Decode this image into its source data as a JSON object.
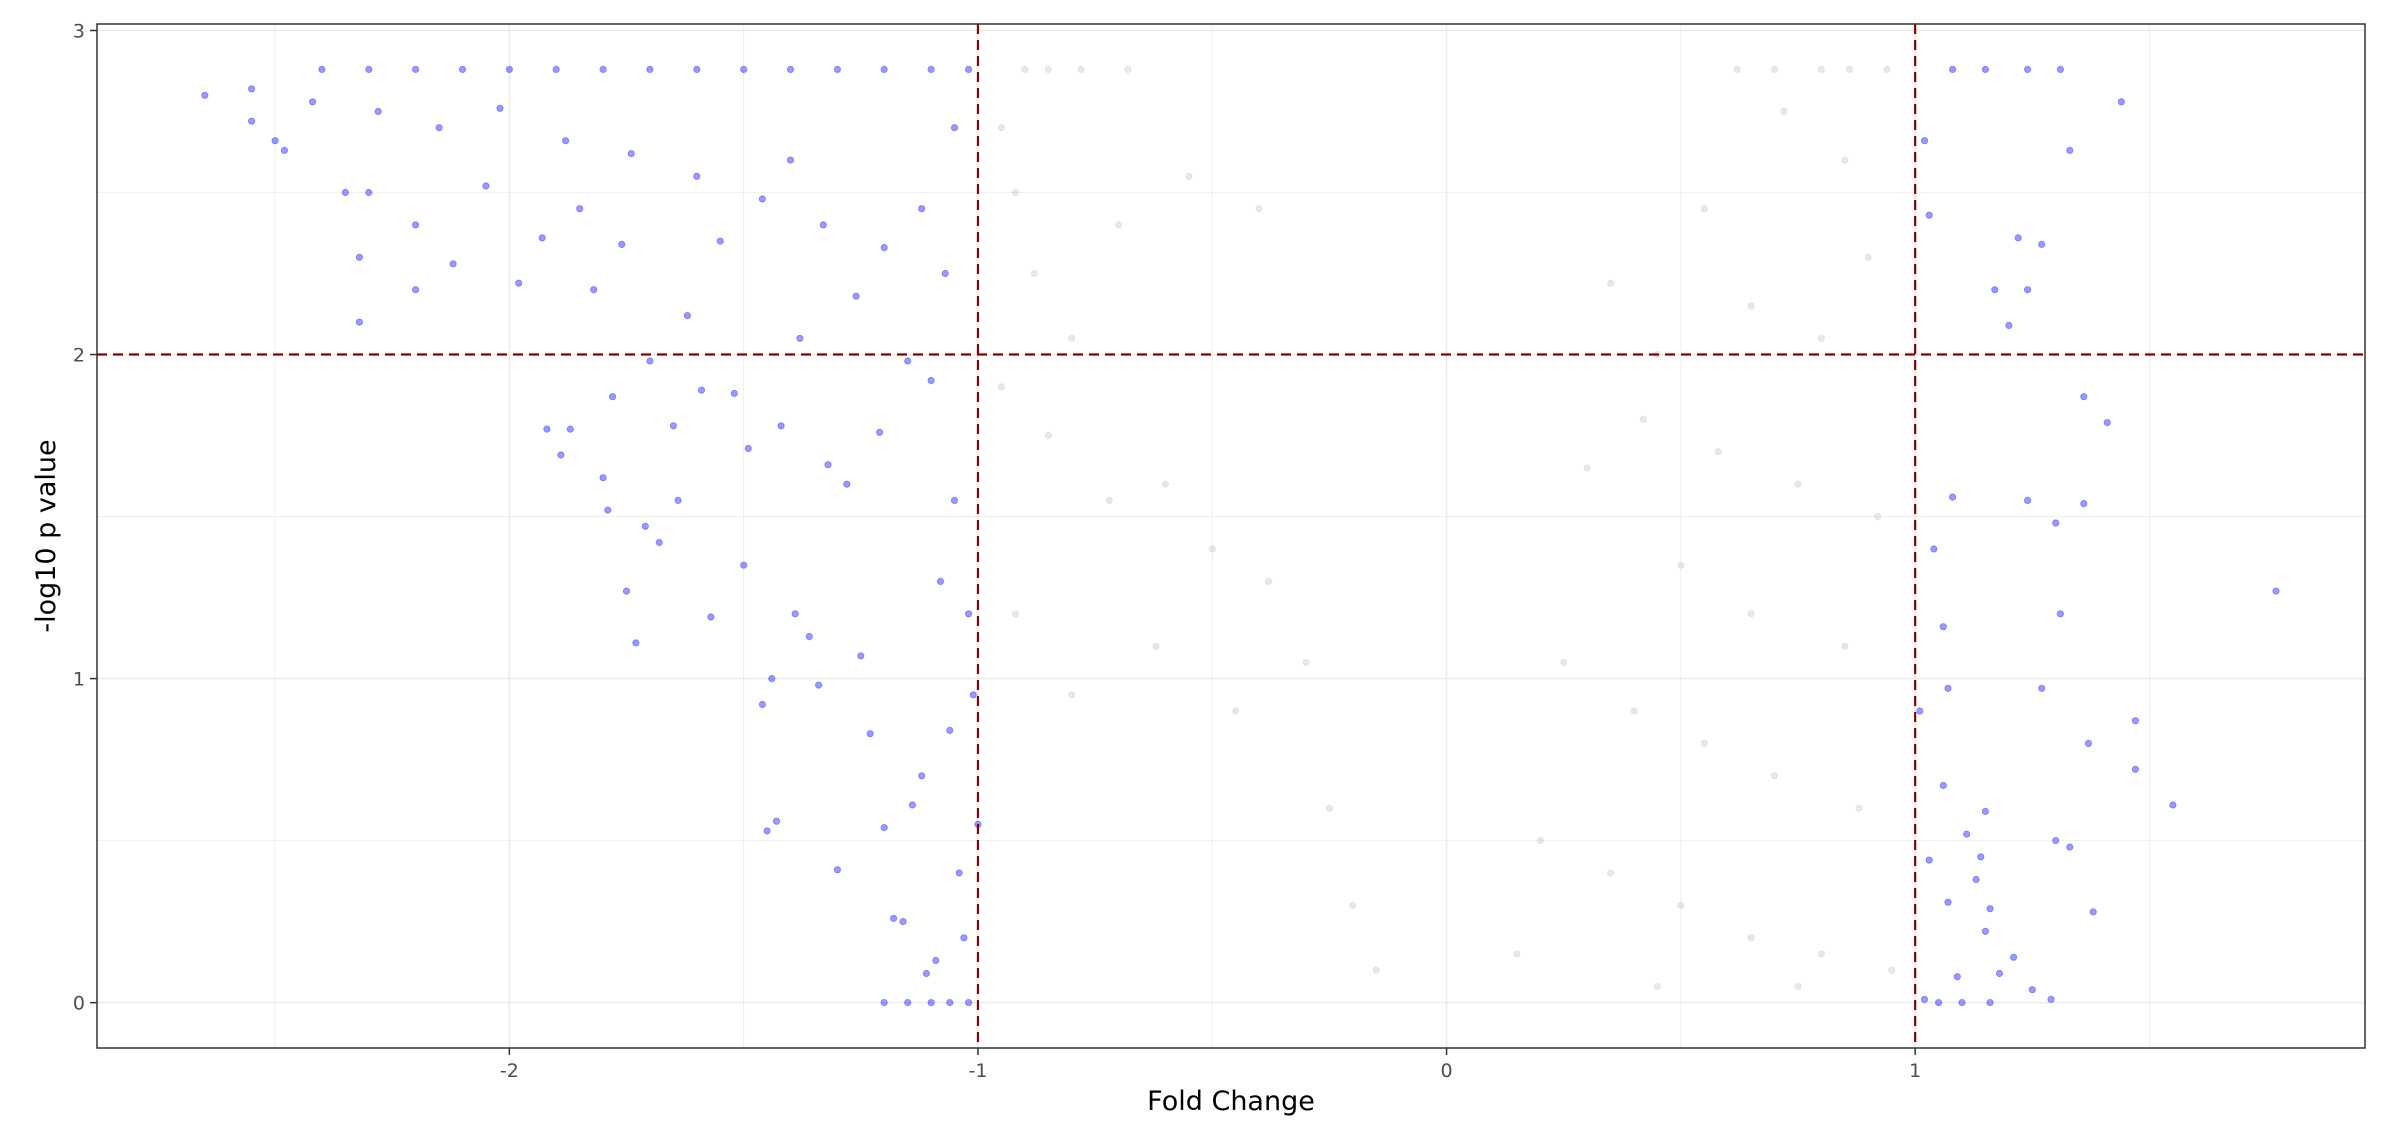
{
  "chart_data": {
    "type": "scatter",
    "title": "",
    "xlabel": "Fold Change",
    "ylabel": "-log10 p value",
    "xlim": [
      -2.88,
      1.96
    ],
    "ylim": [
      -0.14,
      3.02
    ],
    "x_ticks": [
      -2,
      -1,
      0,
      1
    ],
    "y_ticks": [
      0,
      1,
      2,
      3
    ],
    "x_tick_labels": [
      "-2",
      "-1",
      "0",
      "1"
    ],
    "y_tick_labels": [
      "0",
      "1",
      "2",
      "3"
    ],
    "grid": true,
    "legend": "none",
    "thresholds": {
      "fold_change": [
        -1,
        1
      ],
      "neg_log10_p": 2
    },
    "colors": {
      "significant": "#0000ff",
      "not_significant": "#bebebe",
      "threshold_line": "#8b0000",
      "grid": "#ebebeb",
      "panel_border": "#333333"
    },
    "series": [
      {
        "values": [
          [
            -2.65,
            2.8
          ],
          [
            -2.55,
            2.72
          ],
          [
            -2.5,
            2.66
          ],
          [
            -2.48,
            2.63
          ],
          [
            -2.35,
            2.5
          ],
          [
            -2.32,
            2.3
          ],
          [
            -2.32,
            2.1
          ],
          [
            -2.3,
            2.5
          ],
          [
            -2.2,
            2.4
          ],
          [
            -2.2,
            2.2
          ],
          [
            -2.12,
            2.28
          ],
          [
            -2.05,
            2.52
          ],
          [
            -1.98,
            2.22
          ],
          [
            -1.93,
            2.36
          ],
          [
            -1.92,
            1.77
          ],
          [
            -1.89,
            1.69
          ],
          [
            -1.87,
            1.77
          ],
          [
            -1.82,
            2.2
          ],
          [
            -1.8,
            1.62
          ],
          [
            -1.79,
            1.52
          ],
          [
            -1.78,
            1.87
          ],
          [
            -1.76,
            2.34
          ],
          [
            -1.75,
            1.27
          ],
          [
            -1.73,
            1.11
          ],
          [
            -1.71,
            1.47
          ],
          [
            -1.7,
            1.98
          ],
          [
            -1.68,
            1.42
          ],
          [
            -1.65,
            1.78
          ],
          [
            -1.64,
            1.55
          ],
          [
            -1.59,
            1.89
          ],
          [
            -1.57,
            1.19
          ],
          [
            -1.52,
            1.88
          ],
          [
            -1.5,
            1.35
          ],
          [
            -1.49,
            1.71
          ],
          [
            -1.46,
            0.92
          ],
          [
            -1.45,
            0.53
          ],
          [
            -1.44,
            1.0
          ],
          [
            -1.43,
            0.56
          ],
          [
            -1.42,
            1.78
          ],
          [
            -1.39,
            1.2
          ],
          [
            -1.36,
            1.13
          ],
          [
            -1.34,
            0.98
          ],
          [
            -1.32,
            1.66
          ],
          [
            -1.3,
            0.41
          ],
          [
            -1.28,
            1.6
          ],
          [
            -1.25,
            1.07
          ],
          [
            -1.23,
            0.83
          ],
          [
            -1.21,
            1.76
          ],
          [
            -1.2,
            0.54
          ],
          [
            -1.18,
            0.26
          ],
          [
            -1.16,
            0.25
          ],
          [
            -1.14,
            0.61
          ],
          [
            -1.12,
            0.7
          ],
          [
            -1.11,
            0.09
          ],
          [
            -1.1,
            1.92
          ],
          [
            -1.09,
            0.13
          ],
          [
            -1.08,
            1.3
          ],
          [
            -1.06,
            0.84
          ],
          [
            -1.05,
            1.55
          ],
          [
            -1.04,
            0.4
          ],
          [
            -1.03,
            0.2
          ],
          [
            -1.02,
            1.2
          ],
          [
            -1.01,
            0.95
          ],
          [
            -1.0,
            0.55
          ],
          [
            -2.55,
            2.82
          ],
          [
            -2.42,
            2.78
          ],
          [
            -2.28,
            2.75
          ],
          [
            -2.15,
            2.7
          ],
          [
            -2.02,
            2.76
          ],
          [
            -1.88,
            2.66
          ],
          [
            -1.74,
            2.62
          ],
          [
            -1.6,
            2.55
          ],
          [
            -1.46,
            2.48
          ],
          [
            -1.33,
            2.4
          ],
          [
            -1.2,
            2.33
          ],
          [
            -1.07,
            2.25
          ],
          [
            -1.62,
            2.12
          ],
          [
            -1.38,
            2.05
          ],
          [
            -1.15,
            1.98
          ],
          [
            -1.55,
            2.35
          ],
          [
            -1.26,
            2.18
          ],
          [
            -1.12,
            2.45
          ],
          [
            -1.85,
            2.45
          ],
          [
            -1.4,
            2.6
          ],
          [
            -1.05,
            2.7
          ],
          [
            -2.4,
            2.88
          ],
          [
            -2.3,
            2.88
          ],
          [
            -2.2,
            2.88
          ],
          [
            -2.1,
            2.88
          ],
          [
            -2.0,
            2.88
          ],
          [
            -1.9,
            2.88
          ],
          [
            -1.8,
            2.88
          ],
          [
            -1.7,
            2.88
          ],
          [
            -1.6,
            2.88
          ],
          [
            -1.5,
            2.88
          ],
          [
            -1.4,
            2.88
          ],
          [
            -1.3,
            2.88
          ],
          [
            -1.2,
            2.88
          ],
          [
            -1.1,
            2.88
          ],
          [
            -1.02,
            2.88
          ],
          [
            -1.2,
            0.0
          ],
          [
            -1.15,
            0.0
          ],
          [
            -1.1,
            0.0
          ],
          [
            -1.06,
            0.0
          ],
          [
            -1.02,
            0.0
          ],
          [
            1.08,
            2.88
          ],
          [
            1.15,
            2.88
          ],
          [
            1.24,
            2.88
          ],
          [
            1.31,
            2.88
          ],
          [
            1.44,
            2.78
          ],
          [
            1.33,
            2.63
          ],
          [
            1.22,
            2.36
          ],
          [
            1.17,
            2.2
          ],
          [
            1.27,
            2.34
          ],
          [
            1.2,
            2.09
          ],
          [
            1.24,
            2.2
          ],
          [
            1.36,
            1.87
          ],
          [
            1.41,
            1.79
          ],
          [
            1.36,
            1.54
          ],
          [
            1.24,
            1.55
          ],
          [
            1.3,
            1.48
          ],
          [
            1.77,
            1.27
          ],
          [
            1.31,
            1.2
          ],
          [
            1.08,
            1.56
          ],
          [
            1.04,
            1.4
          ],
          [
            1.06,
            1.16
          ],
          [
            1.07,
            0.97
          ],
          [
            1.27,
            0.97
          ],
          [
            1.37,
            0.8
          ],
          [
            1.47,
            0.87
          ],
          [
            1.47,
            0.72
          ],
          [
            1.55,
            0.61
          ],
          [
            1.06,
            0.67
          ],
          [
            1.15,
            0.59
          ],
          [
            1.3,
            0.5
          ],
          [
            1.33,
            0.48
          ],
          [
            1.11,
            0.52
          ],
          [
            1.14,
            0.45
          ],
          [
            1.03,
            0.44
          ],
          [
            1.38,
            0.28
          ],
          [
            1.13,
            0.38
          ],
          [
            1.07,
            0.31
          ],
          [
            1.16,
            0.29
          ],
          [
            1.15,
            0.22
          ],
          [
            1.09,
            0.08
          ],
          [
            1.21,
            0.14
          ],
          [
            1.18,
            0.09
          ],
          [
            1.25,
            0.04
          ],
          [
            1.29,
            0.01
          ],
          [
            1.02,
            2.66
          ],
          [
            1.03,
            2.43
          ],
          [
            1.01,
            0.9
          ],
          [
            1.02,
            0.01
          ],
          [
            1.05,
            0.0
          ],
          [
            1.1,
            0.0
          ],
          [
            1.16,
            0.0
          ]
        ]
      },
      {
        "values": [
          [
            -0.9,
            2.88
          ],
          [
            -0.85,
            2.88
          ],
          [
            -0.78,
            2.88
          ],
          [
            -0.68,
            2.88
          ],
          [
            -0.95,
            2.7
          ],
          [
            -0.92,
            2.5
          ],
          [
            -0.88,
            2.25
          ],
          [
            -0.8,
            2.05
          ],
          [
            -0.7,
            2.4
          ],
          [
            -0.55,
            2.55
          ],
          [
            -0.4,
            2.45
          ],
          [
            -0.95,
            1.9
          ],
          [
            -0.85,
            1.75
          ],
          [
            -0.72,
            1.55
          ],
          [
            -0.6,
            1.6
          ],
          [
            -0.5,
            1.4
          ],
          [
            -0.38,
            1.3
          ],
          [
            -0.3,
            1.05
          ],
          [
            -0.25,
            0.6
          ],
          [
            -0.2,
            0.3
          ],
          [
            -0.15,
            0.1
          ],
          [
            -0.45,
            0.9
          ],
          [
            -0.62,
            1.1
          ],
          [
            -0.8,
            0.95
          ],
          [
            -0.92,
            1.2
          ],
          [
            0.62,
            2.88
          ],
          [
            0.7,
            2.88
          ],
          [
            0.8,
            2.88
          ],
          [
            0.86,
            2.88
          ],
          [
            0.94,
            2.88
          ],
          [
            0.72,
            2.75
          ],
          [
            0.85,
            2.6
          ],
          [
            0.55,
            2.45
          ],
          [
            0.9,
            2.3
          ],
          [
            0.65,
            2.15
          ],
          [
            0.8,
            2.05
          ],
          [
            0.45,
            2.0
          ],
          [
            0.35,
            2.22
          ],
          [
            0.42,
            1.8
          ],
          [
            0.58,
            1.7
          ],
          [
            0.75,
            1.6
          ],
          [
            0.92,
            1.5
          ],
          [
            0.3,
            1.65
          ],
          [
            0.5,
            1.35
          ],
          [
            0.65,
            1.2
          ],
          [
            0.85,
            1.1
          ],
          [
            0.25,
            1.05
          ],
          [
            0.4,
            0.9
          ],
          [
            0.55,
            0.8
          ],
          [
            0.7,
            0.7
          ],
          [
            0.88,
            0.6
          ],
          [
            0.2,
            0.5
          ],
          [
            0.35,
            0.4
          ],
          [
            0.5,
            0.3
          ],
          [
            0.65,
            0.2
          ],
          [
            0.8,
            0.15
          ],
          [
            0.95,
            0.1
          ],
          [
            0.15,
            0.15
          ],
          [
            0.45,
            0.05
          ],
          [
            0.75,
            0.05
          ]
        ]
      }
    ]
  }
}
